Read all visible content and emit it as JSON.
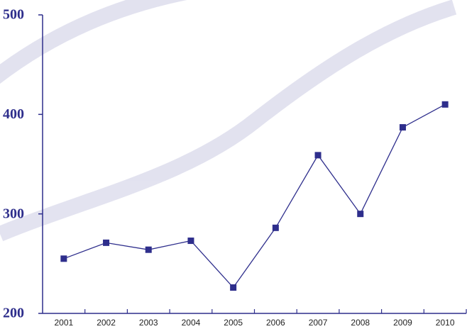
{
  "chart_data": {
    "type": "line",
    "categories": [
      "2001",
      "2002",
      "2003",
      "2004",
      "2005",
      "2006",
      "2007",
      "2008",
      "2009",
      "2010"
    ],
    "series": [
      {
        "color": "#2e2e8c",
        "values": [
          255,
          271,
          264,
          273,
          226,
          286,
          359,
          300,
          387,
          410
        ]
      }
    ],
    "ylim": [
      200,
      500
    ],
    "yticks": [
      200,
      300,
      400,
      500
    ]
  }
}
